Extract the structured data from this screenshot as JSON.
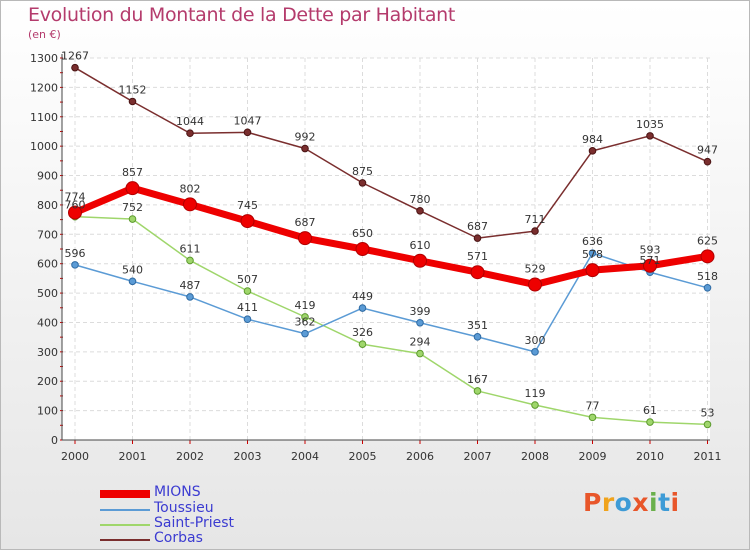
{
  "chart_data": {
    "type": "line",
    "title": "Evolution du Montant de la Dette par Habitant",
    "subtitle": "(en €)",
    "categories": [
      "2000",
      "2001",
      "2002",
      "2003",
      "2004",
      "2005",
      "2006",
      "2007",
      "2008",
      "2009",
      "2010",
      "2011"
    ],
    "yticks": [
      0,
      100,
      200,
      300,
      400,
      500,
      600,
      700,
      800,
      900,
      1000,
      1100,
      1200,
      1300
    ],
    "ylim": [
      0,
      1300
    ],
    "grid": true,
    "legend_position": "bottom-left",
    "series": [
      {
        "name": "MIONS",
        "color": "#ee0000",
        "values": [
          774,
          857,
          802,
          745,
          687,
          650,
          610,
          571,
          529,
          578,
          593,
          625
        ],
        "labels": [
          "774",
          "857",
          "802",
          "745",
          "687",
          "650",
          "610",
          "571",
          "529",
          "578",
          "593",
          "625"
        ]
      },
      {
        "name": "Toussieu",
        "color": "#5b9bd5",
        "values": [
          596,
          540,
          487,
          411,
          362,
          449,
          399,
          351,
          300,
          636,
          571,
          518
        ],
        "labels": [
          "596",
          "540",
          "487",
          "411",
          "362",
          "449",
          "399",
          "351",
          "300",
          "636",
          "571",
          "518"
        ]
      },
      {
        "name": "Saint-Priest",
        "color": "#9fd66b",
        "values": [
          760,
          752,
          611,
          507,
          419,
          326,
          294,
          167,
          119,
          77,
          61,
          53
        ],
        "labels": [
          "760",
          "752",
          "611",
          "507",
          "419",
          "326",
          "294",
          "167",
          "119",
          "77",
          "61",
          "53"
        ]
      },
      {
        "name": "Corbas",
        "color": "#7a2e2e",
        "values": [
          1267,
          1152,
          1044,
          1047,
          992,
          875,
          780,
          687,
          711,
          984,
          1035,
          947
        ],
        "labels": [
          "1267",
          "1152",
          "1044",
          "1047",
          "992",
          "875",
          "780",
          "687",
          "711",
          "984",
          "1035",
          "947"
        ]
      }
    ]
  },
  "logo": {
    "text": "Proxiti",
    "colors": [
      "#e8562a",
      "#f0a31c",
      "#3e9bd6",
      "#e8562a",
      "#6ab04c",
      "#3e9bd6",
      "#e8562a"
    ]
  }
}
